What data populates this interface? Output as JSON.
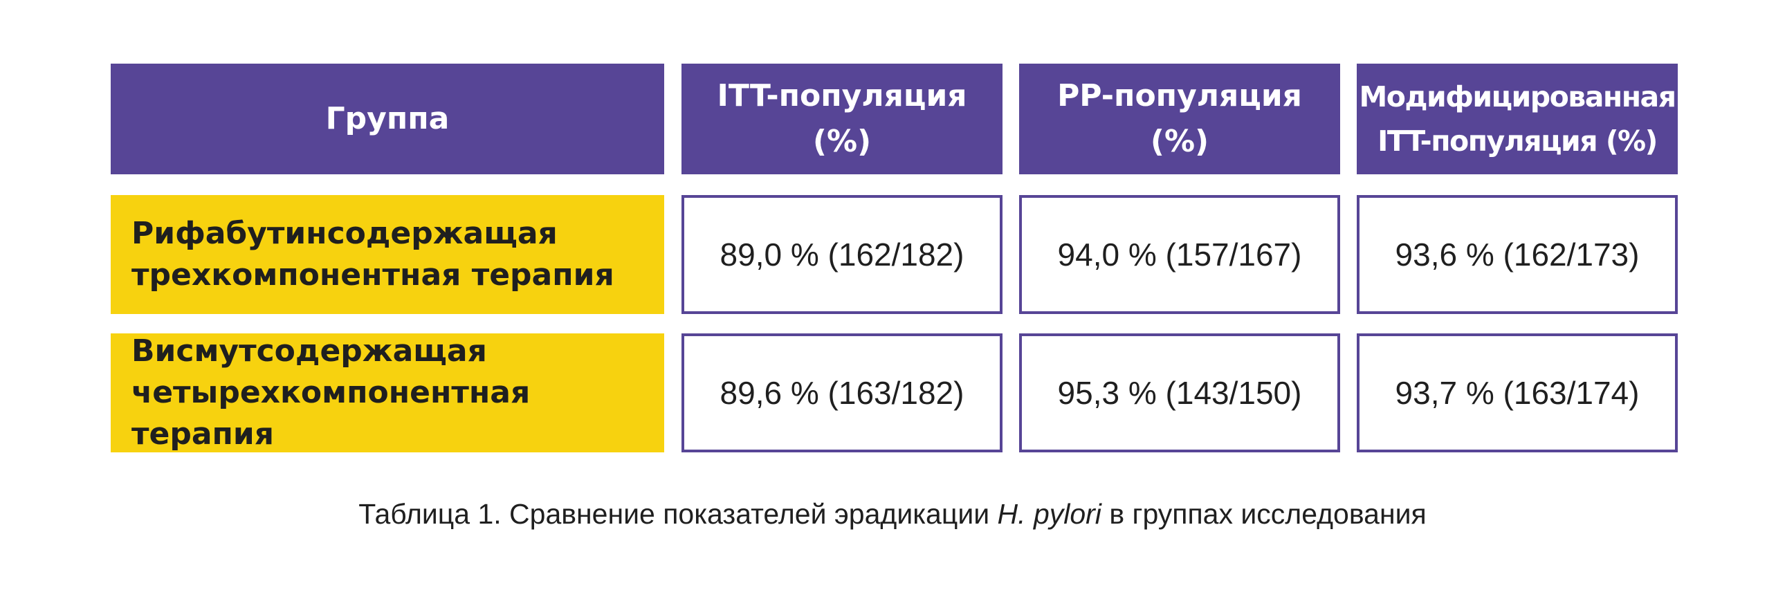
{
  "colors": {
    "header_bg": "#574596",
    "group_bg": "#f7d20f",
    "border": "#574596",
    "text": "#1f1f1f"
  },
  "table": {
    "headers": [
      "Группа",
      "ITT-популяция\n(%)",
      "PP-популяция\n(%)",
      "Модифицированная\nITT-популяция (%)"
    ],
    "rows": [
      {
        "group": "Рифабутинсодержащая\nтрехкомпонентная терапия",
        "values": [
          "89,0 % (162/182)",
          "94,0 % (157/167)",
          "93,6 % (162/173)"
        ]
      },
      {
        "group": "Висмутсодержащая\nчетырехкомпонентная терапия",
        "values": [
          "89,6 % (163/182)",
          "95,3 % (143/150)",
          "93,7 % (163/174)"
        ]
      }
    ]
  },
  "caption": {
    "prefix": "Таблица 1. Сравнение показателей эрадикации ",
    "italic": "H. pylori",
    "suffix": " в группах исследования"
  }
}
